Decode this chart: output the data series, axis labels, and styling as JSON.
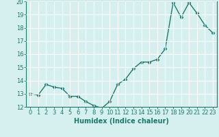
{
  "xlabel": "Humidex (Indice chaleur)",
  "ylabel": "",
  "x": [
    0,
    1,
    2,
    3,
    4,
    5,
    6,
    7,
    8,
    9,
    10,
    11,
    12,
    13,
    14,
    15,
    16,
    17,
    18,
    19,
    20,
    21,
    22,
    23
  ],
  "y": [
    13.0,
    12.9,
    13.7,
    13.5,
    13.4,
    12.8,
    12.8,
    12.4,
    12.1,
    11.9,
    12.4,
    13.7,
    14.1,
    14.9,
    15.4,
    15.4,
    15.6,
    16.4,
    19.9,
    18.8,
    19.9,
    19.1,
    18.2,
    17.6
  ],
  "line_color": "#1a7a6a",
  "marker": "D",
  "marker_size": 2.5,
  "bg_color": "#d6f0f0",
  "grid_color": "#ffffff",
  "ylim": [
    12,
    20
  ],
  "xlim": [
    -0.5,
    23.5
  ],
  "yticks": [
    12,
    13,
    14,
    15,
    16,
    17,
    18,
    19,
    20
  ],
  "xticks": [
    0,
    1,
    2,
    3,
    4,
    5,
    6,
    7,
    8,
    9,
    10,
    11,
    12,
    13,
    14,
    15,
    16,
    17,
    18,
    19,
    20,
    21,
    22,
    23
  ],
  "tick_color": "#1a7a6a",
  "xlabel_fontsize": 7,
  "tick_fontsize": 6,
  "linewidth": 1.0
}
